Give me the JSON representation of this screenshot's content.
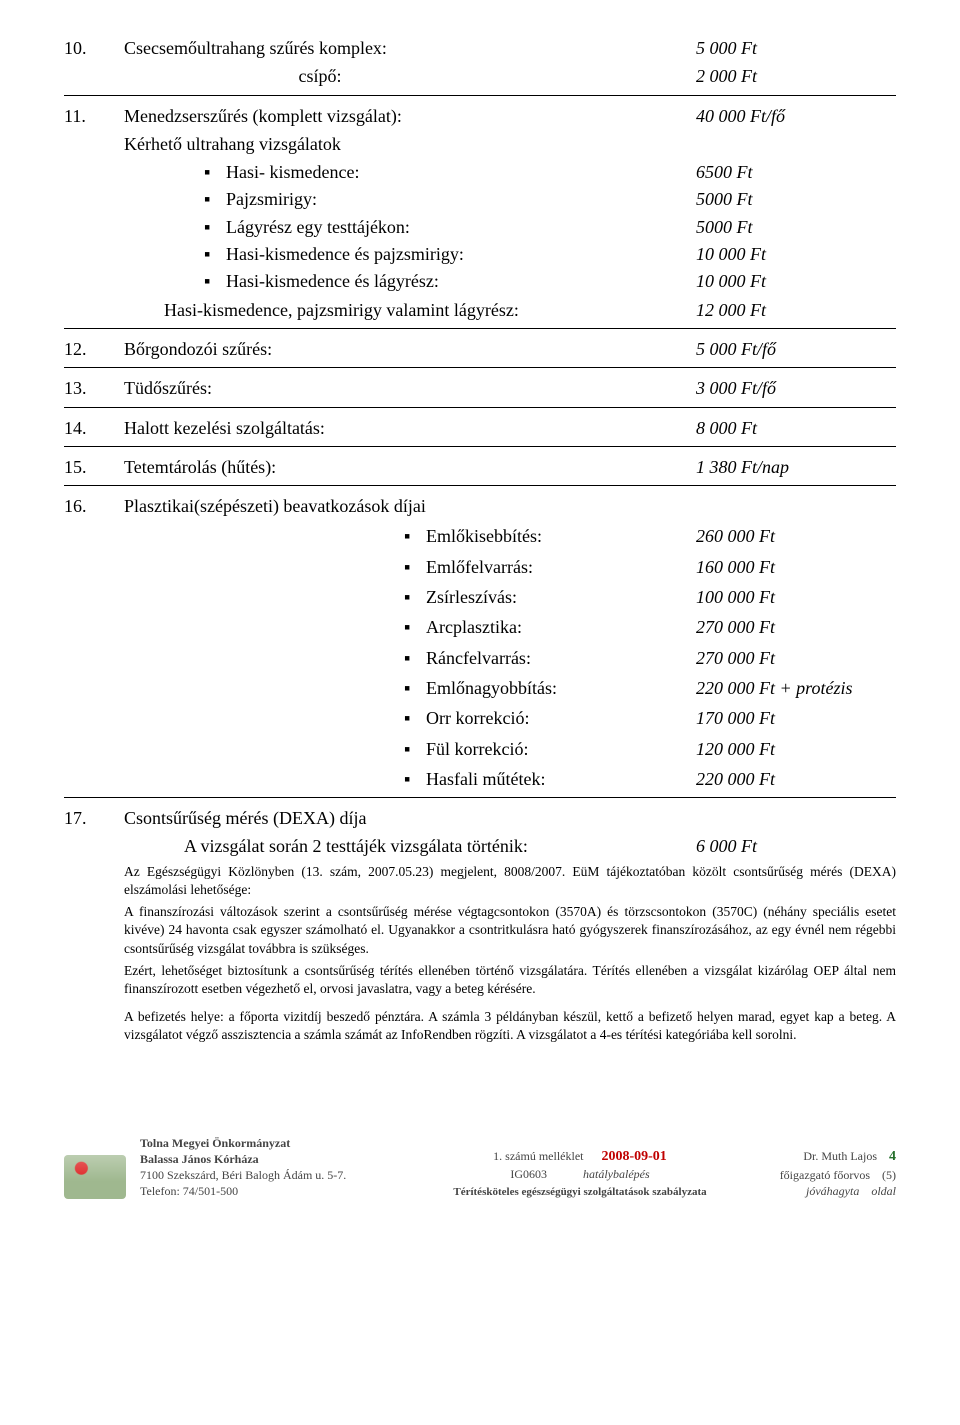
{
  "items": [
    {
      "n": "10.",
      "label": "Csecsemőultrahang szűrés komplex:",
      "price": "5 000 Ft"
    }
  ],
  "item10sub": {
    "label": "csípő:",
    "price": "2 000 Ft"
  },
  "item11": {
    "n": "11.",
    "label": "Menedzserszűrés (komplett vizsgálat):",
    "price": "40 000 Ft/fő"
  },
  "item11head": "Kérhető ultrahang vizsgálatok",
  "item11list": [
    {
      "label": "Hasi- kismedence:",
      "price": "6500 Ft"
    },
    {
      "label": "Pajzsmirigy:",
      "price": "5000 Ft"
    },
    {
      "label": "Lágyrész egy testtájékon:",
      "price": "5000 Ft"
    },
    {
      "label": "Hasi-kismedence és pajzsmirigy:",
      "price": "10 000 Ft"
    },
    {
      "label": "Hasi-kismedence és lágyrész:",
      "price": "10 000 Ft"
    }
  ],
  "item11sum": {
    "label": "Hasi-kismedence, pajzsmirigy valamint lágyrész:",
    "price": "12 000 Ft"
  },
  "rows": [
    {
      "n": "12.",
      "label": "Bőrgondozói szűrés:",
      "price": "5 000 Ft/fő"
    },
    {
      "n": "13.",
      "label": "Tüdőszűrés:",
      "price": "3 000 Ft/fő"
    },
    {
      "n": "14.",
      "label": "Halott kezelési szolgáltatás:",
      "price": "8 000 Ft"
    },
    {
      "n": "15.",
      "label": "Tetemtárolás (hűtés):",
      "price": "1 380 Ft/nap"
    }
  ],
  "item16": {
    "n": "16.",
    "label": "Plasztikai(szépészeti) beavatkozások díjai"
  },
  "item16list": [
    {
      "label": "Emlőkisebbítés:",
      "price": "260 000 Ft"
    },
    {
      "label": "Emlőfelvarrás:",
      "price": "160 000 Ft"
    },
    {
      "label": "Zsírleszívás:",
      "price": "100 000 Ft"
    },
    {
      "label": "Arcplasztika:",
      "price": "270 000 Ft"
    },
    {
      "label": "Ráncfelvarrás:",
      "price": "270 000 Ft"
    },
    {
      "label": "Emlőnagyobbítás:",
      "price": "220 000 Ft + protézis"
    },
    {
      "label": "Orr korrekció:",
      "price": "170 000 Ft"
    },
    {
      "label": "Fül korrekció:",
      "price": "120 000 Ft"
    },
    {
      "label": "Hasfali műtétek:",
      "price": "220 000 Ft"
    }
  ],
  "item17": {
    "n": "17.",
    "label": "Csontsűrűség mérés (DEXA) díja"
  },
  "item17sub": {
    "label": "A vizsgálat során 2 testtájék vizsgálata történik:",
    "price": "6 000 Ft"
  },
  "note1": "Az Egészségügyi Közlönyben (13. szám, 2007.05.23) megjelent, 8008/2007. EüM tájékoztatóban közölt csontsűrűség mérés (DEXA) elszámolási lehetősége:",
  "note2": "A finanszírozási változások szerint a csontsűrűség mérése végtagcsontokon (3570A) és törzscsontokon (3570C) (néhány speciális esetet kivéve) 24 havonta csak egyszer számolható el. Ugyanakkor a csontritkulásra ható gyógyszerek finanszírozásához, az egy évnél nem régebbi csontsűrűség vizsgálat továbbra is szükséges.",
  "note3": "Ezért, lehetőséget biztosítunk a csontsűrűség térítés ellenében történő vizsgálatára. Térítés ellenében a vizsgálat kizárólag OEP által nem finanszírozott esetben végezhető el, orvosi javaslatra, vagy a beteg kérésére.",
  "note4": "A befizetés helye: a főporta vizitdíj beszedő pénztára. A számla 3 példányban készül, kettő a befizető helyen marad, egyet kap a beteg. A vizsgálatot végző asszisztencia a számla számát az InfoRendben rögzíti. A vizsgálatot a 4-es térítési kategóriába kell sorolni.",
  "footer": {
    "org1": "Tolna Megyei Önkormányzat",
    "org2": "Balassa János Kórháza",
    "addr": "7100 Szekszárd, Béri Balogh Ádám u. 5-7.",
    "tel": "Telefon: 74/501-500",
    "docnum": "1. számú melléklet",
    "code": "IG0603",
    "date": "2008-09-01",
    "datelabel": "hatálybalépés",
    "titleline": "Térítésköteles egészségügyi szolgáltatások szabályzata",
    "signer": "Dr. Muth Lajos",
    "role": "főigazgató főorvos",
    "approved": "jóváhagyta",
    "page": "4",
    "total": "(5)",
    "oldal": "oldal"
  }
}
